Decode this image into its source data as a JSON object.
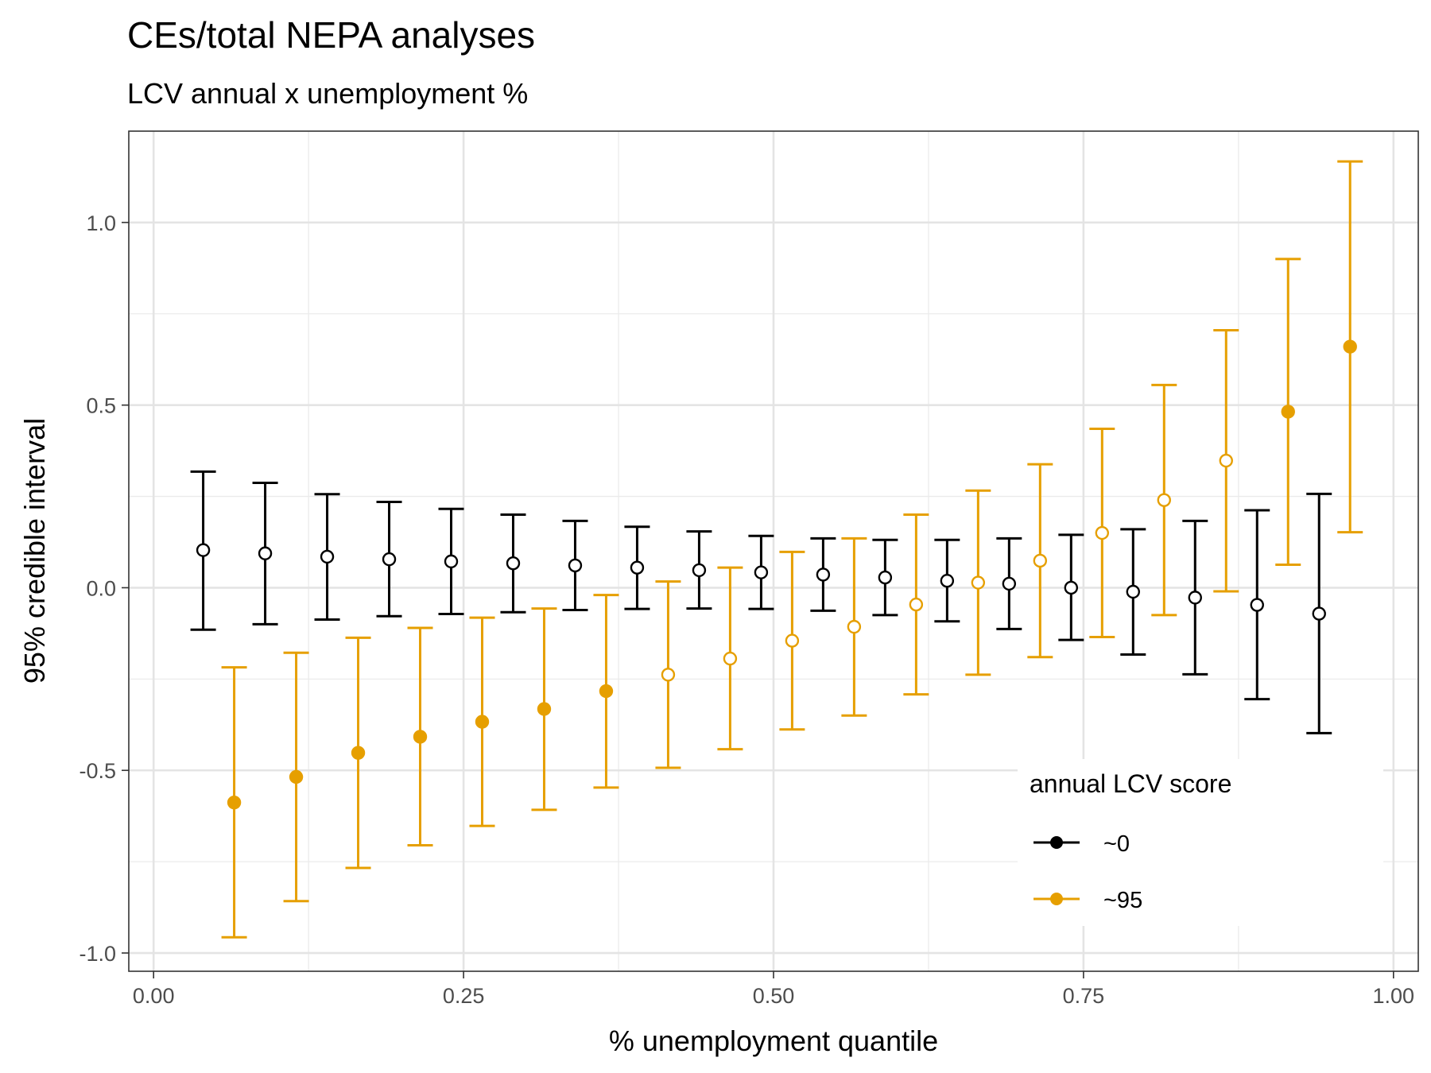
{
  "chart_data": {
    "type": "scatter",
    "title": "CEs/total NEPA analyses",
    "subtitle": "LCV annual x unemployment %",
    "xlabel": "% unemployment quantile",
    "ylabel": "95% credible interval",
    "xlim": [
      -0.02,
      1.02
    ],
    "ylim": [
      -1.05,
      1.25
    ],
    "x_ticks": [
      0,
      0.25,
      0.5,
      0.75,
      1
    ],
    "x_tick_labels": [
      "0.00",
      "0.25",
      "0.50",
      "0.75",
      "1.00"
    ],
    "y_ticks": [
      -1,
      -0.5,
      0,
      0.5,
      1
    ],
    "y_tick_labels": [
      "-1.0",
      "-0.5",
      "0.0",
      "0.5",
      "1.0"
    ],
    "grid": true,
    "legend": {
      "title": "annual LCV score",
      "placement": "bottom-right-inside",
      "entries": [
        {
          "label": "~0",
          "color": "#000000"
        },
        {
          "label": "~95",
          "color": "#E69F00"
        }
      ]
    },
    "series": [
      {
        "name": "~0",
        "color": "#000000",
        "points": [
          {
            "x": 0.04,
            "y": 0.103,
            "lower": -0.115,
            "upper": 0.318,
            "significant": false
          },
          {
            "x": 0.09,
            "y": 0.094,
            "lower": -0.1,
            "upper": 0.287,
            "significant": false
          },
          {
            "x": 0.14,
            "y": 0.085,
            "lower": -0.087,
            "upper": 0.256,
            "significant": false
          },
          {
            "x": 0.19,
            "y": 0.078,
            "lower": -0.078,
            "upper": 0.235,
            "significant": false
          },
          {
            "x": 0.24,
            "y": 0.072,
            "lower": -0.072,
            "upper": 0.216,
            "significant": false
          },
          {
            "x": 0.29,
            "y": 0.067,
            "lower": -0.067,
            "upper": 0.2,
            "significant": false
          },
          {
            "x": 0.34,
            "y": 0.061,
            "lower": -0.061,
            "upper": 0.183,
            "significant": false
          },
          {
            "x": 0.39,
            "y": 0.055,
            "lower": -0.058,
            "upper": 0.167,
            "significant": false
          },
          {
            "x": 0.44,
            "y": 0.048,
            "lower": -0.057,
            "upper": 0.154,
            "significant": false
          },
          {
            "x": 0.49,
            "y": 0.042,
            "lower": -0.058,
            "upper": 0.142,
            "significant": false
          },
          {
            "x": 0.54,
            "y": 0.036,
            "lower": -0.063,
            "upper": 0.135,
            "significant": false
          },
          {
            "x": 0.59,
            "y": 0.028,
            "lower": -0.075,
            "upper": 0.131,
            "significant": false
          },
          {
            "x": 0.64,
            "y": 0.019,
            "lower": -0.092,
            "upper": 0.131,
            "significant": false
          },
          {
            "x": 0.69,
            "y": 0.011,
            "lower": -0.113,
            "upper": 0.135,
            "significant": false
          },
          {
            "x": 0.74,
            "y": 0.0,
            "lower": -0.143,
            "upper": 0.145,
            "significant": false
          },
          {
            "x": 0.79,
            "y": -0.011,
            "lower": -0.183,
            "upper": 0.16,
            "significant": false
          },
          {
            "x": 0.84,
            "y": -0.027,
            "lower": -0.237,
            "upper": 0.183,
            "significant": false
          },
          {
            "x": 0.89,
            "y": -0.047,
            "lower": -0.305,
            "upper": 0.212,
            "significant": false
          },
          {
            "x": 0.94,
            "y": -0.071,
            "lower": -0.398,
            "upper": 0.257,
            "significant": false
          }
        ]
      },
      {
        "name": "~95",
        "color": "#E69F00",
        "points": [
          {
            "x": 0.065,
            "y": -0.588,
            "lower": -0.957,
            "upper": -0.218,
            "significant": true
          },
          {
            "x": 0.115,
            "y": -0.518,
            "lower": -0.858,
            "upper": -0.178,
            "significant": true
          },
          {
            "x": 0.165,
            "y": -0.452,
            "lower": -0.767,
            "upper": -0.137,
            "significant": true
          },
          {
            "x": 0.215,
            "y": -0.408,
            "lower": -0.705,
            "upper": -0.11,
            "significant": true
          },
          {
            "x": 0.265,
            "y": -0.367,
            "lower": -0.652,
            "upper": -0.082,
            "significant": true
          },
          {
            "x": 0.315,
            "y": -0.332,
            "lower": -0.608,
            "upper": -0.057,
            "significant": true
          },
          {
            "x": 0.365,
            "y": -0.283,
            "lower": -0.547,
            "upper": -0.02,
            "significant": true
          },
          {
            "x": 0.415,
            "y": -0.238,
            "lower": -0.493,
            "upper": 0.017,
            "significant": false
          },
          {
            "x": 0.465,
            "y": -0.194,
            "lower": -0.442,
            "upper": 0.055,
            "significant": false
          },
          {
            "x": 0.515,
            "y": -0.145,
            "lower": -0.388,
            "upper": 0.098,
            "significant": false
          },
          {
            "x": 0.565,
            "y": -0.107,
            "lower": -0.35,
            "upper": 0.135,
            "significant": false
          },
          {
            "x": 0.615,
            "y": -0.046,
            "lower": -0.292,
            "upper": 0.2,
            "significant": false
          },
          {
            "x": 0.665,
            "y": 0.014,
            "lower": -0.238,
            "upper": 0.266,
            "significant": false
          },
          {
            "x": 0.715,
            "y": 0.074,
            "lower": -0.19,
            "upper": 0.338,
            "significant": false
          },
          {
            "x": 0.765,
            "y": 0.15,
            "lower": -0.135,
            "upper": 0.435,
            "significant": false
          },
          {
            "x": 0.815,
            "y": 0.24,
            "lower": -0.075,
            "upper": 0.555,
            "significant": false
          },
          {
            "x": 0.865,
            "y": 0.348,
            "lower": -0.01,
            "upper": 0.705,
            "significant": false
          },
          {
            "x": 0.915,
            "y": 0.482,
            "lower": 0.063,
            "upper": 0.9,
            "significant": true
          },
          {
            "x": 0.965,
            "y": 0.66,
            "lower": 0.152,
            "upper": 1.167,
            "significant": true
          }
        ]
      }
    ]
  }
}
